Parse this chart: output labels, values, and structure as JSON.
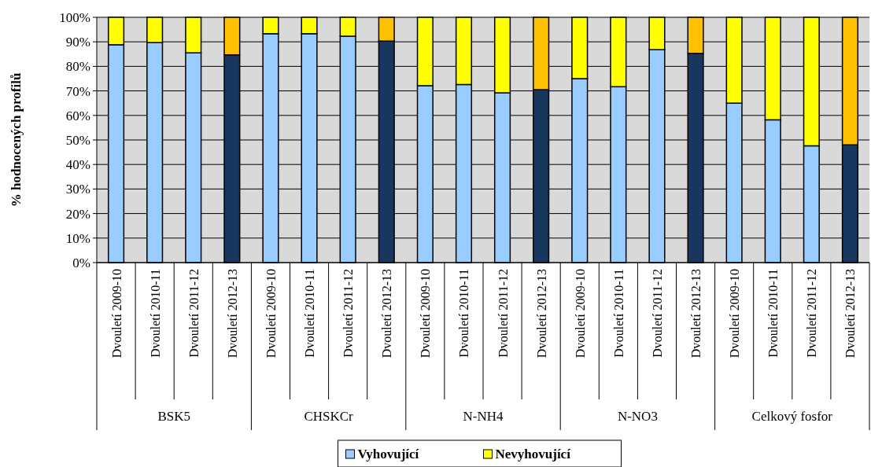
{
  "chart_data": {
    "type": "bar",
    "stacked": true,
    "ylabel": "% hodnocených profilů",
    "categories": [
      "Dvouletí 2009-10",
      "Dvouletí 2010-11",
      "Dvouletí 2011-12",
      "Dvouletí 2012-13",
      "Dvouletí 2009-10",
      "Dvouletí 2010-11",
      "Dvouletí 2011-12",
      "Dvouletí 2012-13",
      "Dvouletí 2009-10",
      "Dvouletí 2010-11",
      "Dvouletí 2011-12",
      "Dvouletí 2012-13",
      "Dvouletí 2009-10",
      "Dvouletí 2010-11",
      "Dvouletí 2011-12",
      "Dvouletí 2012-13",
      "Dvouletí 2009-10",
      "Dvouletí 2010-11",
      "Dvouletí 2011-12",
      "Dvouletí 2012-13"
    ],
    "annotations": [
      "BSK5",
      "CHSKCr",
      "N-NH4",
      "N-NO3",
      "Celkový fosfor"
    ],
    "series": [
      {
        "name": "Vyhovující",
        "color": "#99ccff",
        "colors": [
          "#99ccff",
          "#99ccff",
          "#99ccff",
          "#17375e",
          "#99ccff",
          "#99ccff",
          "#99ccff",
          "#17375e",
          "#99ccff",
          "#99ccff",
          "#99ccff",
          "#17375e",
          "#99ccff",
          "#99ccff",
          "#99ccff",
          "#17375e",
          "#99ccff",
          "#99ccff",
          "#99ccff",
          "#17375e"
        ],
        "values": [
          88.8,
          89.7,
          85.5,
          84.7,
          93.3,
          93.3,
          92.3,
          90.3,
          72.1,
          72.6,
          69.2,
          70.5,
          75,
          71.7,
          86.8,
          85.3,
          65,
          58.2,
          47.6,
          48
        ]
      },
      {
        "name": "Nevyhovující",
        "color": "#ffff00",
        "colors": [
          "#ffff00",
          "#ffff00",
          "#ffff00",
          "#ffc000",
          "#ffff00",
          "#ffff00",
          "#ffff00",
          "#ffc000",
          "#ffff00",
          "#ffff00",
          "#ffff00",
          "#ffc000",
          "#ffff00",
          "#ffff00",
          "#ffff00",
          "#ffc000",
          "#ffff00",
          "#ffff00",
          "#ffff00",
          "#ffc000"
        ],
        "values": [
          11.2,
          10.3,
          14.5,
          15.3,
          6.7,
          6.7,
          7.7,
          9.7,
          27.9,
          27.4,
          30.8,
          29.5,
          25,
          28.3,
          13.2,
          14.7,
          35,
          41.8,
          52.4,
          52
        ]
      }
    ],
    "ylim": [
      0,
      100
    ],
    "yticks": [
      {
        "value": 0,
        "label": "0%"
      },
      {
        "value": 10,
        "label": "10%"
      },
      {
        "value": 20,
        "label": "20%"
      },
      {
        "value": 30,
        "label": "30%"
      },
      {
        "value": 40,
        "label": "40%"
      },
      {
        "value": 50,
        "label": "50%"
      },
      {
        "value": 60,
        "label": "60%"
      },
      {
        "value": 70,
        "label": "70%"
      },
      {
        "value": 80,
        "label": "80%"
      },
      {
        "value": 90,
        "label": "90%"
      },
      {
        "value": 100,
        "label": "100%"
      }
    ],
    "grid": "y",
    "legend": "bottom"
  }
}
